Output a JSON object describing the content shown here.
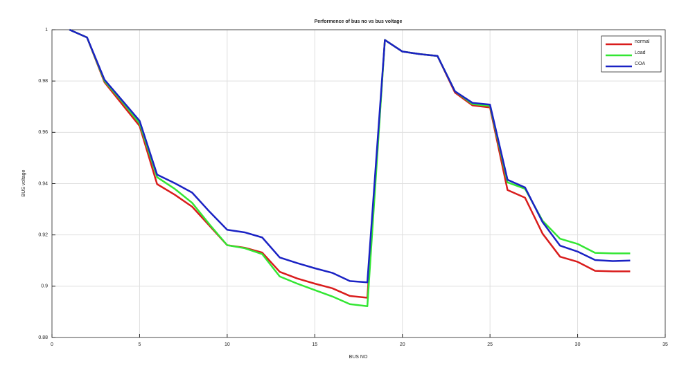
{
  "chart_data": {
    "type": "line",
    "title": "Performence of bus no vs bus voltage",
    "x_label": "BUS NO",
    "y_label": "BUS voltage",
    "x": [
      1,
      2,
      3,
      4,
      5,
      6,
      7,
      8,
      9,
      10,
      11,
      12,
      13,
      14,
      15,
      16,
      17,
      18,
      19,
      20,
      21,
      22,
      23,
      24,
      25,
      26,
      27,
      28,
      29,
      30,
      31,
      32,
      33
    ],
    "series": [
      {
        "name": "normal",
        "color": "#d91c1c",
        "values": [
          1.0,
          0.997,
          0.9795,
          0.971,
          0.9625,
          0.9398,
          0.9357,
          0.931,
          0.9235,
          0.916,
          0.915,
          0.9131,
          0.9056,
          0.903,
          0.901,
          0.8992,
          0.8962,
          0.8955,
          0.996,
          0.9915,
          0.9905,
          0.9898,
          0.9755,
          0.9705,
          0.9697,
          0.9375,
          0.9345,
          0.9205,
          0.9115,
          0.9095,
          0.906,
          0.9058,
          0.9058
        ]
      },
      {
        "name": "Load",
        "color": "#33e633",
        "values": [
          1.0,
          0.997,
          0.98,
          0.972,
          0.9635,
          0.9425,
          0.938,
          0.9325,
          0.924,
          0.916,
          0.9148,
          0.9125,
          0.9038,
          0.901,
          0.8985,
          0.896,
          0.893,
          0.8922,
          0.996,
          0.9915,
          0.9905,
          0.9898,
          0.976,
          0.971,
          0.9703,
          0.9405,
          0.938,
          0.9255,
          0.9185,
          0.9165,
          0.913,
          0.9128,
          0.9128
        ]
      },
      {
        "name": "COA",
        "color": "#1a22c4",
        "values": [
          1.0,
          0.997,
          0.9805,
          0.9725,
          0.9645,
          0.9435,
          0.9402,
          0.9365,
          0.929,
          0.922,
          0.921,
          0.919,
          0.9112,
          0.909,
          0.907,
          0.9052,
          0.902,
          0.9015,
          0.996,
          0.9915,
          0.9905,
          0.9898,
          0.976,
          0.9715,
          0.9708,
          0.9415,
          0.9385,
          0.925,
          0.9158,
          0.9135,
          0.9102,
          0.9098,
          0.91
        ]
      }
    ],
    "xlim": [
      0,
      35
    ],
    "xticks": [
      0,
      5,
      10,
      15,
      20,
      25,
      30,
      35
    ],
    "ylim": [
      0.88,
      1
    ],
    "yticks": [
      0.88,
      0.9,
      0.92,
      0.94,
      0.96,
      0.98,
      1
    ],
    "grid": true,
    "legend": "upper right"
  }
}
